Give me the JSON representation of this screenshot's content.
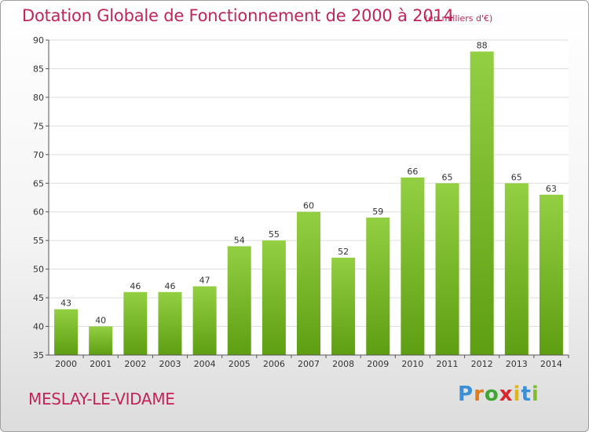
{
  "title": "Dotation Globale de Fonctionnement de 2000 à 2014",
  "unit_note": "(en milliers d'€)",
  "commune": "MESLAY-LE-VIDAME",
  "logo": {
    "letters": [
      "P",
      "r",
      "o",
      "x",
      "i",
      "t",
      "i"
    ],
    "colors": [
      "#3a8fd6",
      "#e07b1a",
      "#3fa535",
      "#d8262e",
      "#e0b51a",
      "#3a8fd6",
      "#7fbf2a"
    ]
  },
  "colors": {
    "bar_top": "#93cf42",
    "bar_bottom": "#5e9e12",
    "axis": "#555555",
    "grid": "#dddddd",
    "accent": "#c0245a"
  },
  "chart_data": {
    "type": "bar",
    "categories": [
      "2000",
      "2001",
      "2002",
      "2003",
      "2004",
      "2005",
      "2006",
      "2007",
      "2008",
      "2009",
      "2010",
      "2011",
      "2012",
      "2013",
      "2014"
    ],
    "values": [
      43,
      40,
      46,
      46,
      47,
      54,
      55,
      60,
      52,
      59,
      66,
      65,
      88,
      65,
      63
    ],
    "ylim": [
      35,
      90
    ],
    "yticks": [
      35,
      40,
      45,
      50,
      55,
      60,
      65,
      70,
      75,
      80,
      85,
      90
    ],
    "grid": true,
    "xlabel": "",
    "ylabel": ""
  }
}
